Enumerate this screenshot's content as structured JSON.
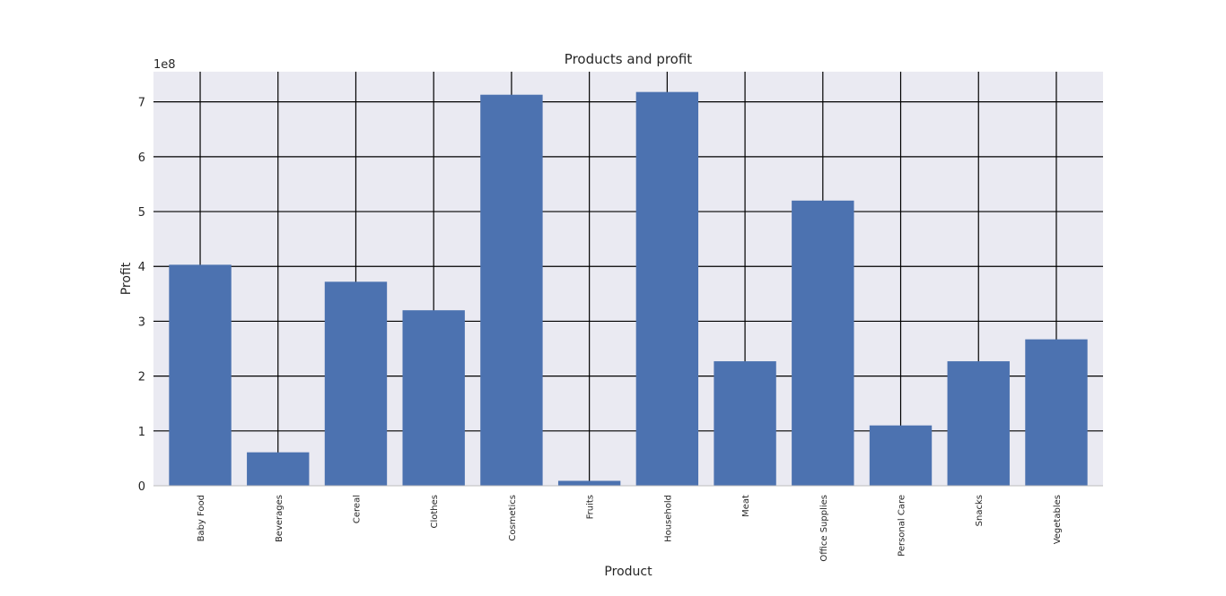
{
  "chart_data": {
    "type": "bar",
    "title": "Products and profit",
    "xlabel": "Product",
    "ylabel": "Profit",
    "y_offset_text": "1e8",
    "categories": [
      "Baby Food",
      "Beverages",
      "Cereal",
      "Clothes",
      "Cosmetics",
      "Fruits",
      "Household",
      "Meat",
      "Office Supplies",
      "Personal Care",
      "Snacks",
      "Vegetables"
    ],
    "values": [
      4.03,
      0.61,
      3.72,
      3.2,
      7.13,
      0.09,
      7.18,
      2.27,
      5.2,
      1.1,
      2.27,
      2.67
    ],
    "yticks": [
      "0",
      "1",
      "2",
      "3",
      "4",
      "5",
      "6",
      "7"
    ],
    "ylim": [
      0,
      7.55
    ],
    "grid": true,
    "bar_color": "#4c72b0",
    "background_color": "#eaeaf2"
  }
}
